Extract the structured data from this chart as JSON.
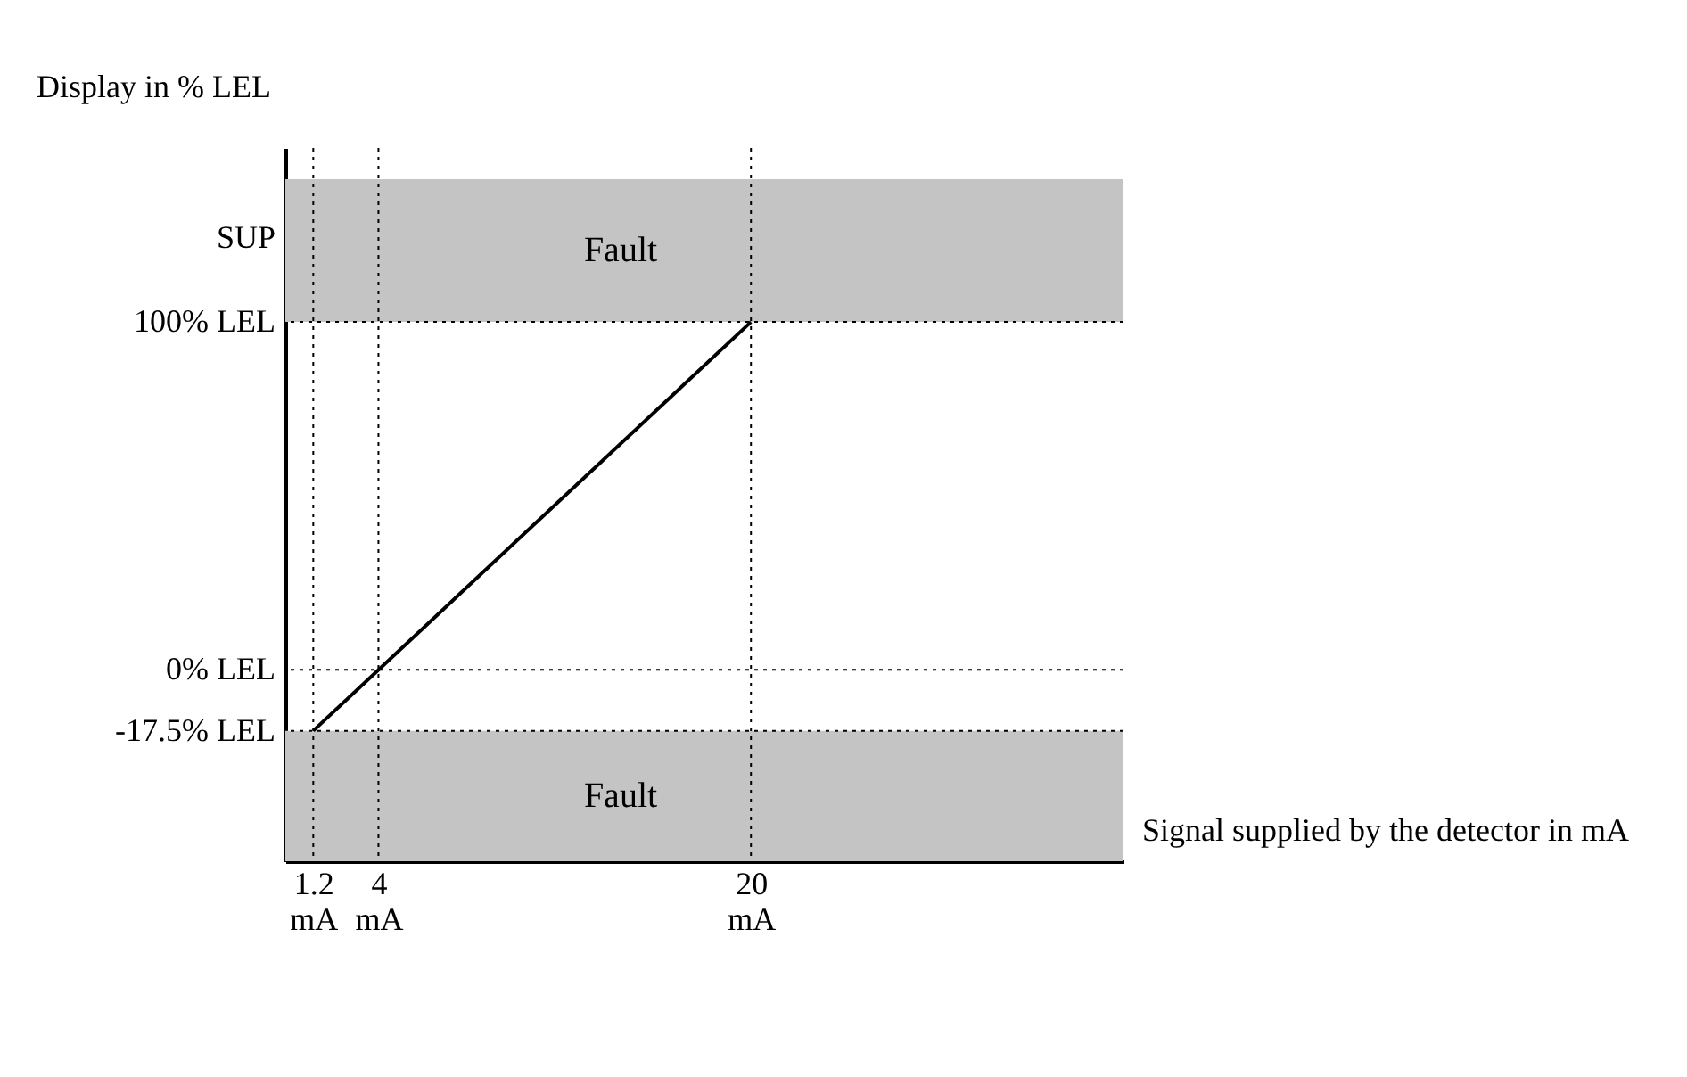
{
  "chart_data": {
    "type": "line",
    "xlabel": "Signal supplied by the detector in mA",
    "ylabel": "Display in % LEL",
    "series": [
      {
        "color": "#000000",
        "x": [
          1.2,
          20
        ],
        "values": [
          -17.5,
          100
        ]
      }
    ],
    "xlim": [
      0,
      36
    ],
    "ylim": [
      -55,
      150
    ],
    "xticks": [
      {
        "value": 1.2,
        "label": "1.2 mA"
      },
      {
        "value": 4,
        "label": "4 mA"
      },
      {
        "value": 20,
        "label": "20 mA"
      }
    ],
    "yticks": [
      {
        "value": -17.5,
        "label": "-17.5% LEL"
      },
      {
        "value": 0,
        "label": "0% LEL"
      },
      {
        "value": 100,
        "label": "100% LEL"
      },
      {
        "value": 124,
        "label": "SUP"
      }
    ],
    "ref_lines": [
      {
        "axis": "y",
        "value": 100,
        "line_style": "dotted",
        "color": "#000000"
      },
      {
        "axis": "y",
        "value": 0,
        "line_style": "dotted",
        "color": "#000000"
      },
      {
        "axis": "y",
        "value": -17.5,
        "line_style": "dotted",
        "color": "#000000"
      },
      {
        "axis": "x",
        "value": 1.2,
        "line_style": "dotted",
        "color": "#000000"
      },
      {
        "axis": "x",
        "value": 4,
        "line_style": "dotted",
        "color": "#000000"
      },
      {
        "axis": "x",
        "value": 20,
        "line_style": "dotted",
        "color": "#000000"
      }
    ],
    "bands": [
      {
        "axis": "y",
        "from": 100,
        "to": 141,
        "label": "Fault",
        "color": "#c4c4c4"
      },
      {
        "axis": "y",
        "from": -55,
        "to": -17.5,
        "label": "Fault",
        "color": "#c4c4c4"
      }
    ],
    "grid": false
  }
}
